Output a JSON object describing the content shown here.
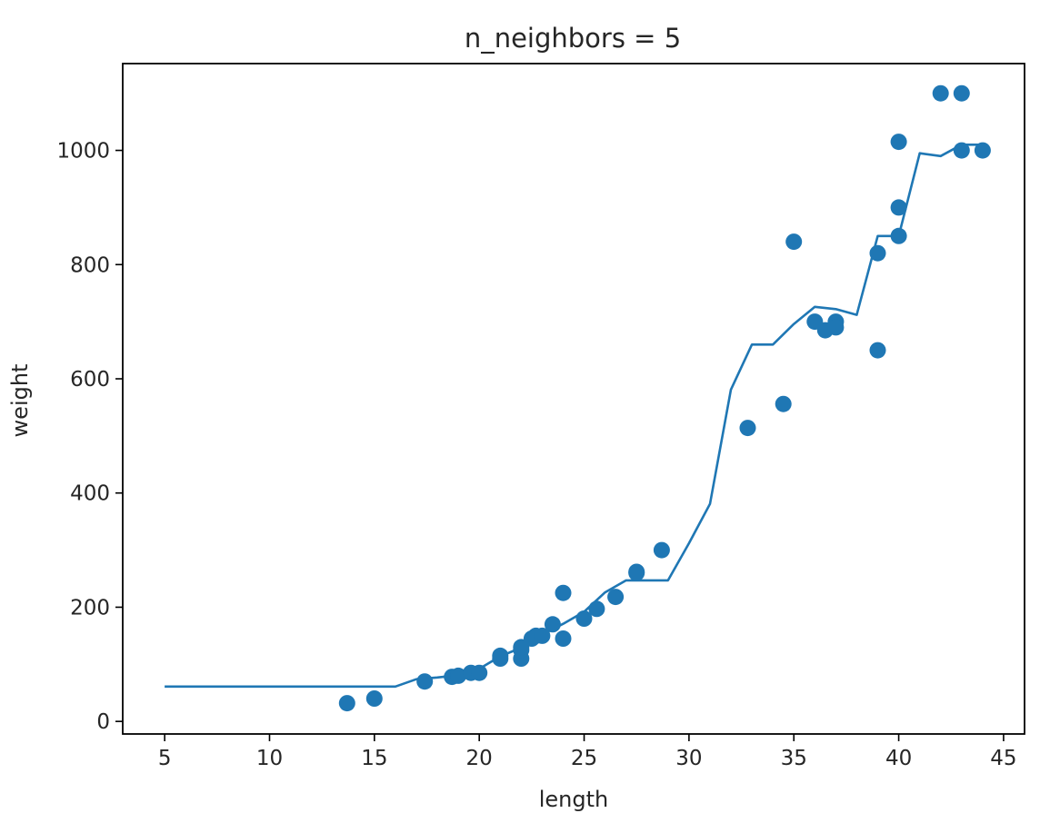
{
  "chart_data": {
    "type": "scatter",
    "title": "n_neighbors = 5",
    "xlabel": "length",
    "ylabel": "weight",
    "xlim": [
      3,
      46
    ],
    "ylim": [
      -22,
      1152
    ],
    "x_ticks": [
      "5",
      "10",
      "15",
      "20",
      "25",
      "30",
      "35",
      "40",
      "45"
    ],
    "y_ticks": [
      "0",
      "200",
      "400",
      "600",
      "800",
      "1000"
    ],
    "grid": false,
    "legend": "none",
    "color": "#1f77b4",
    "series": [
      {
        "type": "scatter",
        "points": [
          [
            13.7,
            32
          ],
          [
            15.0,
            40
          ],
          [
            17.4,
            70
          ],
          [
            18.7,
            78
          ],
          [
            19.0,
            80
          ],
          [
            19.6,
            85
          ],
          [
            20.0,
            85
          ],
          [
            21.0,
            110
          ],
          [
            21.0,
            115
          ],
          [
            22.0,
            110
          ],
          [
            22.0,
            125
          ],
          [
            22.0,
            130
          ],
          [
            22.5,
            145
          ],
          [
            22.7,
            150
          ],
          [
            23.0,
            150
          ],
          [
            23.5,
            170
          ],
          [
            24.0,
            145
          ],
          [
            24.0,
            225
          ],
          [
            25.0,
            180
          ],
          [
            25.6,
            197
          ],
          [
            26.5,
            218
          ],
          [
            27.5,
            262
          ],
          [
            27.5,
            260
          ],
          [
            28.7,
            300
          ],
          [
            32.8,
            514
          ],
          [
            34.5,
            556
          ],
          [
            35.0,
            840
          ],
          [
            36.0,
            700
          ],
          [
            36.5,
            685
          ],
          [
            37.0,
            700
          ],
          [
            37.0,
            690
          ],
          [
            39.0,
            650
          ],
          [
            39.0,
            820
          ],
          [
            40.0,
            850
          ],
          [
            40.0,
            900
          ],
          [
            40.0,
            1015
          ],
          [
            42.0,
            1100
          ],
          [
            43.0,
            1100
          ],
          [
            43.0,
            1000
          ],
          [
            44.0,
            1000
          ]
        ]
      },
      {
        "type": "line",
        "points": [
          [
            5,
            61
          ],
          [
            6,
            61
          ],
          [
            7,
            61
          ],
          [
            8,
            61
          ],
          [
            9,
            61
          ],
          [
            10,
            61
          ],
          [
            11,
            61
          ],
          [
            12,
            61
          ],
          [
            13,
            61
          ],
          [
            14,
            61
          ],
          [
            15,
            61
          ],
          [
            16,
            61
          ],
          [
            17,
            74
          ],
          [
            18,
            77
          ],
          [
            19,
            81
          ],
          [
            20,
            92
          ],
          [
            21,
            114
          ],
          [
            22,
            129
          ],
          [
            23,
            152
          ],
          [
            24,
            171
          ],
          [
            25,
            192
          ],
          [
            26,
            226
          ],
          [
            27,
            247
          ],
          [
            28,
            247
          ],
          [
            29,
            247
          ],
          [
            30,
            312
          ],
          [
            31,
            381
          ],
          [
            32,
            581
          ],
          [
            33,
            660
          ],
          [
            34,
            660
          ],
          [
            35,
            696
          ],
          [
            36,
            726
          ],
          [
            37,
            722
          ],
          [
            38,
            712
          ],
          [
            39,
            850
          ],
          [
            40,
            850
          ],
          [
            41,
            995
          ],
          [
            42,
            990
          ],
          [
            43,
            1010
          ],
          [
            44,
            1010
          ]
        ]
      }
    ]
  }
}
